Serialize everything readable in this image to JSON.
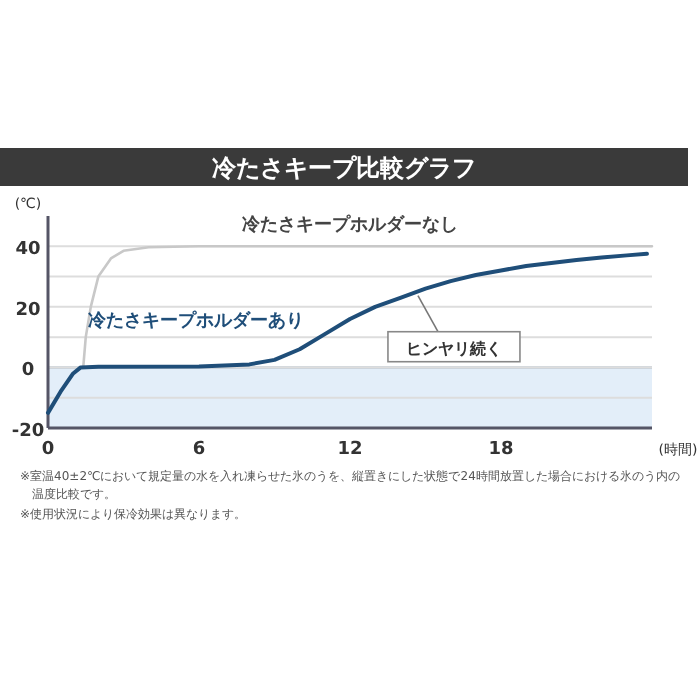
{
  "chart_data": {
    "type": "line",
    "title": "冷たさキープ比較グラフ",
    "xlabel": "(時間)",
    "ylabel": "(℃)",
    "xlim": [
      0,
      24
    ],
    "ylim": [
      -20,
      50
    ],
    "xticks": [
      0,
      6,
      12,
      18
    ],
    "yticks": [
      {
        "value": -20,
        "label": "-20"
      },
      {
        "value": -10,
        "label": null
      },
      0,
      {
        "value": 10,
        "label": null
      },
      20,
      {
        "value": 30,
        "label": null
      },
      40
    ],
    "grid": "y",
    "bands": [
      {
        "axis": "y",
        "from": -20,
        "to": 0,
        "color": "#e3eef9"
      }
    ],
    "series": [
      {
        "name": "冷たさキープホルダーなし",
        "color": "#c8c8c8",
        "x": [
          1.4,
          1.5,
          1.7,
          2,
          2.5,
          3,
          4,
          6,
          24
        ],
        "values": [
          0,
          10,
          20,
          30,
          36,
          38.5,
          39.7,
          40,
          40
        ]
      },
      {
        "name": "冷たさキープホルダーあり",
        "color": "#1f4e79",
        "x": [
          0,
          0.5,
          1,
          1.3,
          2,
          6,
          8,
          9,
          10,
          11,
          12,
          13,
          14,
          15,
          16,
          17,
          18,
          19,
          20,
          21,
          22,
          23,
          23.8
        ],
        "values": [
          -15,
          -8,
          -2,
          0,
          0.2,
          0.3,
          1,
          2.5,
          6,
          11,
          16,
          20,
          23,
          26,
          28.5,
          30.5,
          32,
          33.5,
          34.5,
          35.5,
          36.3,
          37,
          37.5
        ]
      }
    ],
    "annotations": [
      {
        "text": "ヒンヤリ続く",
        "x": 14.7,
        "y": 25
      },
      "※室温40±2℃において規定量の水を入れ凍らせた氷のうを、縦置きにした状態で24時間放置した場合における氷のう内の温度比較です。",
      "※使用状況により保冷効果は異なります。"
    ]
  }
}
